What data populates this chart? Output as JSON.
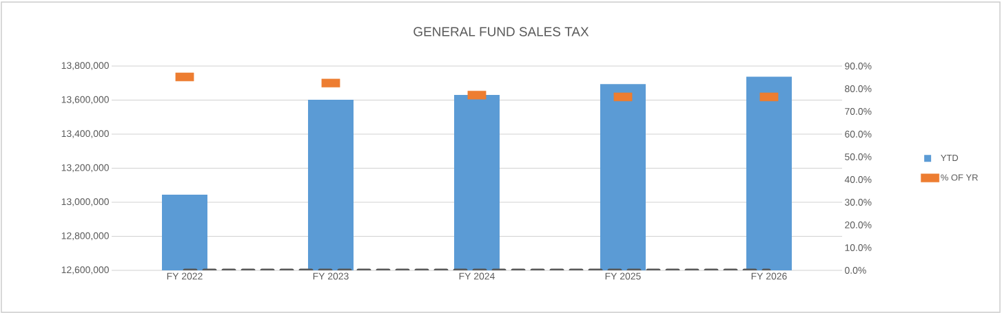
{
  "chart_data": {
    "type": "bar",
    "title": "GENERAL FUND SALES TAX",
    "categories": [
      "FY 2022",
      "FY 2023",
      "FY 2024",
      "FY 2025",
      "FY 2026"
    ],
    "series": [
      {
        "name": "YTD",
        "color": "#5b9bd5",
        "values": [
          13044000,
          13602000,
          13630000,
          13694000,
          13737000
        ]
      },
      {
        "name": "% OF YR",
        "type": "scatter",
        "marker": "square",
        "axis": "y2",
        "color": "#ed7d31",
        "values": [
          85.2,
          82.5,
          77.2,
          76.4,
          76.4
        ]
      },
      {
        "type": "line",
        "axis": "y2",
        "line_style": "dashed",
        "color": "#595959",
        "values": [
          0,
          0,
          0,
          0,
          0
        ]
      }
    ],
    "ylim": [
      12600000,
      13800000
    ],
    "yticks": [
      {
        "value": 12600000,
        "label": "12,600,000"
      },
      {
        "value": 12800000,
        "label": "12,800,000"
      },
      {
        "value": 13000000,
        "label": "13,000,000"
      },
      {
        "value": 13200000,
        "label": "13,200,000"
      },
      {
        "value": 13400000,
        "label": "13,400,000"
      },
      {
        "value": 13600000,
        "label": "13,600,000"
      },
      {
        "value": 13800000,
        "label": "13,800,000"
      }
    ],
    "y2lim": [
      0,
      90
    ],
    "y2ticks": [
      {
        "value": 0,
        "label": "0.0%"
      },
      {
        "value": 10,
        "label": "10.0%"
      },
      {
        "value": 20,
        "label": "20.0%"
      },
      {
        "value": 30,
        "label": "30.0%"
      },
      {
        "value": 40,
        "label": "40.0%"
      },
      {
        "value": 50,
        "label": "50.0%"
      },
      {
        "value": 60,
        "label": "60.0%"
      },
      {
        "value": 70,
        "label": "70.0%"
      },
      {
        "value": 80,
        "label": "80.0%"
      },
      {
        "value": 90,
        "label": "90.0%"
      }
    ],
    "grid": "y",
    "legend": "right"
  }
}
